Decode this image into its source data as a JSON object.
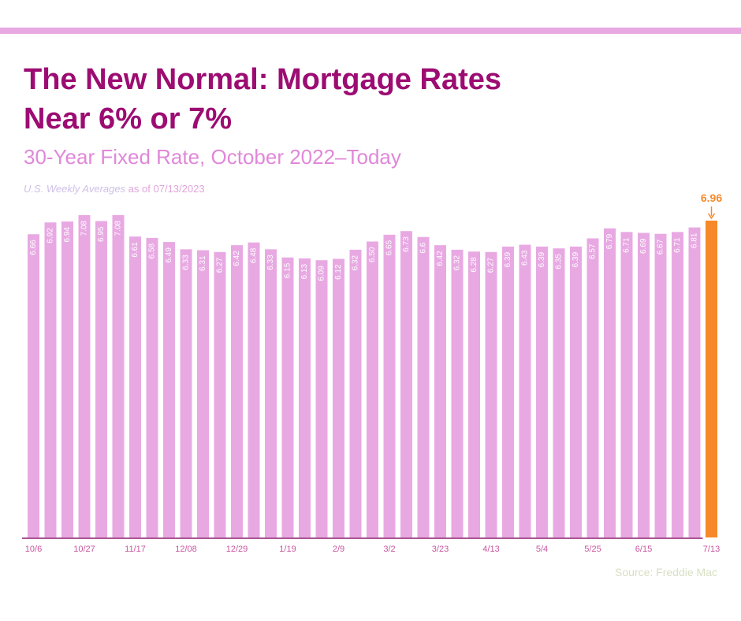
{
  "header": {
    "title_line1": "The New Normal: Mortgage Rates",
    "title_line2": "Near 6% or 7%",
    "subtitle": "30-Year Fixed Rate, October 2022–Today",
    "note_italic": "U.S. Weekly Averages",
    "note_plain": " as of 07/13/2023"
  },
  "source": "Source: Freddie Mac",
  "colors": {
    "bar": "#e8a9e3",
    "highlight": "#f7892a",
    "accent": "#9c0c72",
    "axis": "#8b1f6e"
  },
  "chart_data": {
    "type": "bar",
    "title": "The New Normal: Mortgage Rates Near 6% or 7%",
    "subtitle": "30-Year Fixed Rate, October 2022–Today",
    "xlabel": "",
    "ylabel": "",
    "values": [
      6.66,
      6.92,
      6.94,
      7.08,
      6.95,
      7.08,
      6.61,
      6.58,
      6.49,
      6.33,
      6.31,
      6.27,
      6.42,
      6.48,
      6.33,
      6.15,
      6.13,
      6.09,
      6.12,
      6.32,
      6.5,
      6.65,
      6.73,
      6.6,
      6.42,
      6.32,
      6.28,
      6.27,
      6.39,
      6.43,
      6.39,
      6.35,
      6.39,
      6.57,
      6.79,
      6.71,
      6.69,
      6.67,
      6.71,
      6.81,
      6.96
    ],
    "value_labels": [
      "6.66",
      "6.92",
      "6.94",
      "7.08",
      "6.95",
      "7.08",
      "6.61",
      "6.58",
      "6.49",
      "6.33",
      "6.31",
      "6.27",
      "6.42",
      "6.48",
      "6.33",
      "6.15",
      "6.13",
      "6.09",
      "6.12",
      "6.32",
      "6.50",
      "6.65",
      "6.73",
      "6.6",
      "6.42",
      "6.32",
      "6.28",
      "6.27",
      "6.39",
      "6.43",
      "6.39",
      "6.35",
      "6.39",
      "6.57",
      "6.79",
      "6.71",
      "6.69",
      "6.67",
      "6.71",
      "6.81",
      "6.96"
    ],
    "tick_labels": [
      {
        "index": 0,
        "label": "10/6"
      },
      {
        "index": 3,
        "label": "10/27"
      },
      {
        "index": 6,
        "label": "11/17"
      },
      {
        "index": 9,
        "label": "12/08"
      },
      {
        "index": 12,
        "label": "12/29"
      },
      {
        "index": 15,
        "label": "1/19"
      },
      {
        "index": 18,
        "label": "2/9"
      },
      {
        "index": 21,
        "label": "3/2"
      },
      {
        "index": 24,
        "label": "3/23"
      },
      {
        "index": 27,
        "label": "4/13"
      },
      {
        "index": 30,
        "label": "5/4"
      },
      {
        "index": 33,
        "label": "5/25"
      },
      {
        "index": 36,
        "label": "6/15"
      },
      {
        "index": 40,
        "label": "7/13"
      }
    ],
    "highlight_index": 40,
    "highlight_label": "6.96",
    "ylim": [
      0,
      7.5
    ],
    "grid": false,
    "legend": "none"
  }
}
